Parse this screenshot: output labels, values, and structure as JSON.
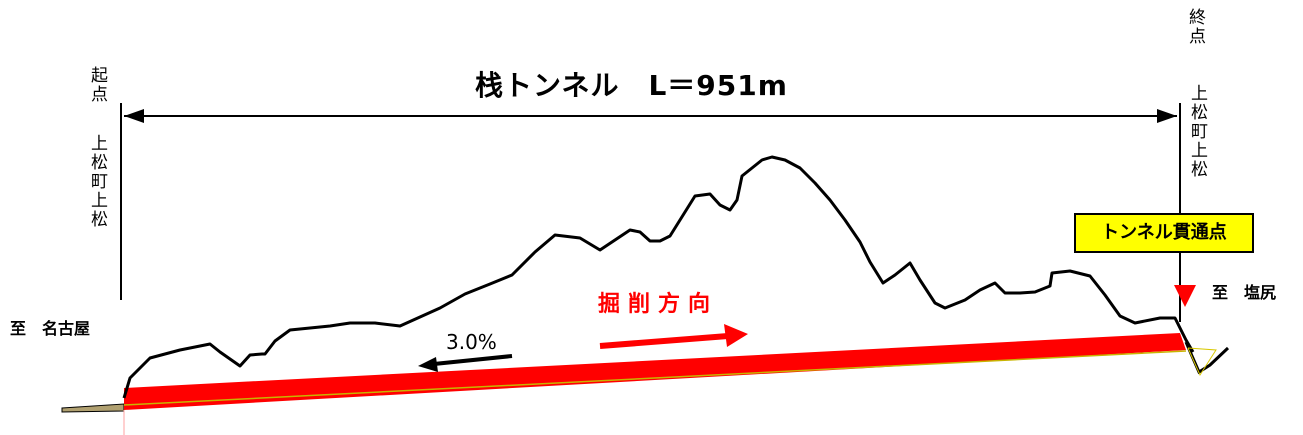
{
  "title": "栈トンネル　L＝951m",
  "start": {
    "label": "起点",
    "station": "上松町上松"
  },
  "end": {
    "label": "終点",
    "station": "上松町上松"
  },
  "to_left": "至　名古屋",
  "to_right": "至　塩尻",
  "breakthrough": "トンネル貫通点",
  "excavation_direction": "掘削方向",
  "gradient": "3.0%",
  "colors": {
    "tunnel": "#ff0000",
    "badge": "#ffff00",
    "terrain": "#000000",
    "marker": "#ff0000"
  }
}
